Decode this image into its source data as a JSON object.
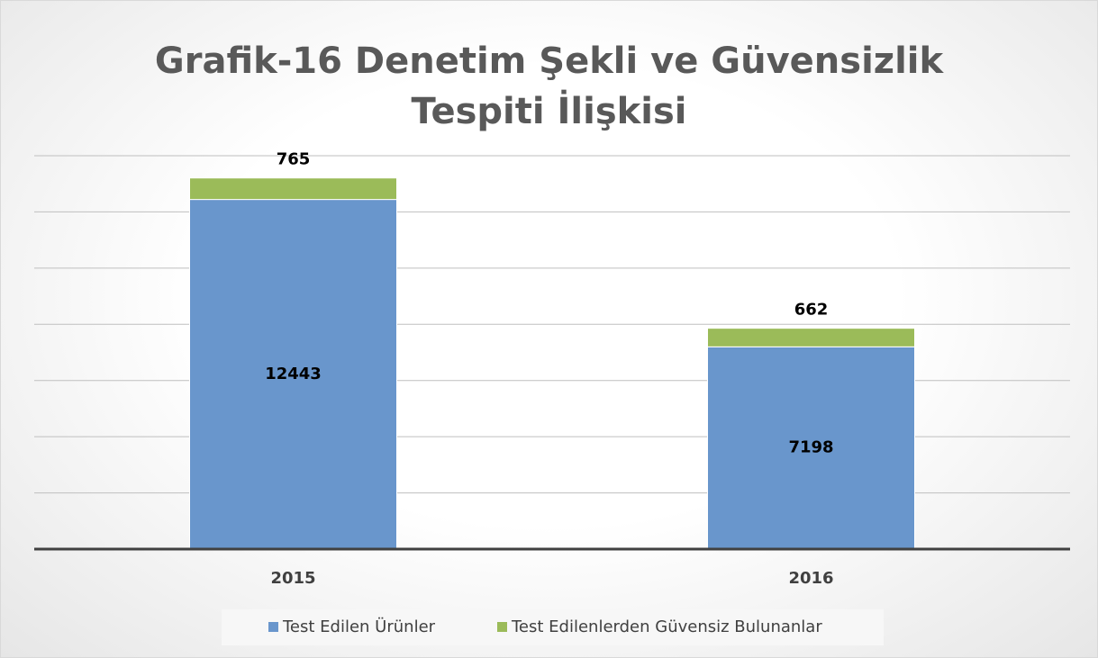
{
  "chart_data": {
    "type": "stacked_bar",
    "title": "Grafik-16 Denetim Şekli ve Güvensizlik Tespiti İlişkisi",
    "categories": [
      "2015",
      "2016"
    ],
    "series": [
      {
        "name": "Test Edilen Ürünler",
        "color": "#6996cc",
        "values": [
          12443,
          7198
        ]
      },
      {
        "name": "Test Edilenlerden Güvensiz Bulunanlar",
        "color": "#9bbb59",
        "values": [
          765,
          662
        ]
      }
    ],
    "ylim": [
      0,
      14000
    ],
    "yticks": [
      0,
      2000,
      4000,
      6000,
      8000,
      10000,
      12000,
      14000
    ],
    "grid": true
  }
}
